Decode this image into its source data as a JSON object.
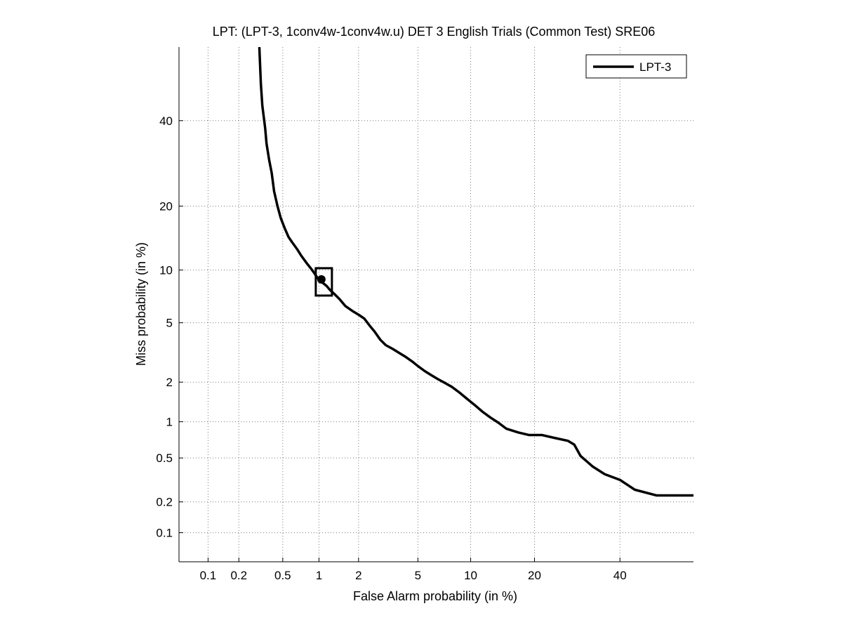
{
  "chart_data": {
    "type": "line",
    "title": "LPT: (LPT-3, 1conv4w-1conv4w.u) DET 3 English Trials (Common Test) SRE06",
    "xlabel": "False Alarm probability (in %)",
    "ylabel": "Miss probability (in %)",
    "xscale": "normal-deviate (probit)",
    "yscale": "normal-deviate (probit)",
    "xlim": [
      0.05,
      60
    ],
    "ylim": [
      0.05,
      60
    ],
    "grid": true,
    "legend_position": "top-right",
    "x_ticks": [
      0.1,
      0.2,
      0.5,
      1,
      2,
      5,
      10,
      20,
      40
    ],
    "x_tick_labels": [
      "0.1",
      "0.2",
      "0.5",
      "1",
      "2",
      "5",
      "10",
      "20",
      "40"
    ],
    "y_ticks": [
      0.1,
      0.2,
      0.5,
      1,
      2,
      5,
      10,
      20,
      40
    ],
    "y_tick_labels": [
      "0.1",
      "0.2",
      "0.5",
      "1",
      "2",
      "5",
      "10",
      "20",
      "40"
    ],
    "series": [
      {
        "name": "LPT-3",
        "color": "#000000",
        "x": [
          0.31,
          0.32,
          0.33,
          0.35,
          0.36,
          0.38,
          0.4,
          0.42,
          0.45,
          0.48,
          0.52,
          0.56,
          0.6,
          0.66,
          0.72,
          0.8,
          0.86,
          0.92,
          0.97,
          1.02,
          1.08,
          1.15,
          1.22,
          1.32,
          1.45,
          1.6,
          1.8,
          2.0,
          2.2,
          2.4,
          2.6,
          2.85,
          3.1,
          3.45,
          3.8,
          4.2,
          4.6,
          5.0,
          5.5,
          6.0,
          6.6,
          7.2,
          7.9,
          8.7,
          9.6,
          10.5,
          11.5,
          12.6,
          13.8,
          15.0,
          17.0,
          19.0,
          21.5,
          24.0,
          27.0,
          28.5,
          30.0,
          33.0,
          36.0,
          40.0,
          44.0,
          50.0,
          60.0
        ],
        "y": [
          60,
          50,
          44,
          38,
          34,
          30,
          27,
          23,
          20,
          17.8,
          16,
          14.6,
          13.8,
          12.8,
          11.8,
          10.8,
          10.2,
          9.6,
          9.1,
          8.8,
          8.5,
          8.2,
          7.8,
          7.4,
          6.9,
          6.3,
          5.9,
          5.6,
          5.3,
          4.8,
          4.4,
          3.9,
          3.6,
          3.4,
          3.2,
          3.0,
          2.8,
          2.6,
          2.4,
          2.25,
          2.1,
          1.98,
          1.85,
          1.68,
          1.5,
          1.35,
          1.2,
          1.08,
          0.98,
          0.88,
          0.82,
          0.78,
          0.78,
          0.74,
          0.7,
          0.65,
          0.52,
          0.42,
          0.36,
          0.32,
          0.26,
          0.23,
          0.23
        ]
      }
    ],
    "marker": {
      "type": "square-with-dot",
      "x": 1.1,
      "y": 8.6
    }
  }
}
